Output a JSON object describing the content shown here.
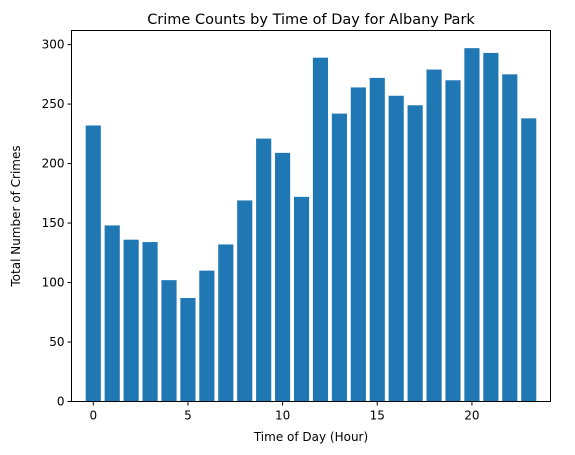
{
  "chart_data": {
    "type": "bar",
    "title": "Crime Counts by Time of Day for Albany Park",
    "xlabel": "Time of Day (Hour)",
    "ylabel": "Total Number of Crimes",
    "x": [
      0,
      1,
      2,
      3,
      4,
      5,
      6,
      7,
      8,
      9,
      10,
      11,
      12,
      13,
      14,
      15,
      16,
      17,
      18,
      19,
      20,
      21,
      22,
      23
    ],
    "values": [
      232,
      148,
      136,
      134,
      102,
      87,
      110,
      132,
      169,
      221,
      209,
      172,
      289,
      242,
      264,
      272,
      257,
      249,
      279,
      270,
      297,
      293,
      275,
      238
    ],
    "xlim": [
      -1.15,
      24.15
    ],
    "ylim": [
      0,
      311.85
    ],
    "xticks": [
      0,
      5,
      10,
      15,
      20
    ],
    "yticks": [
      0,
      50,
      100,
      150,
      200,
      250,
      300
    ],
    "bar_color": "#1f77b4",
    "grid": false,
    "legend": "none"
  }
}
